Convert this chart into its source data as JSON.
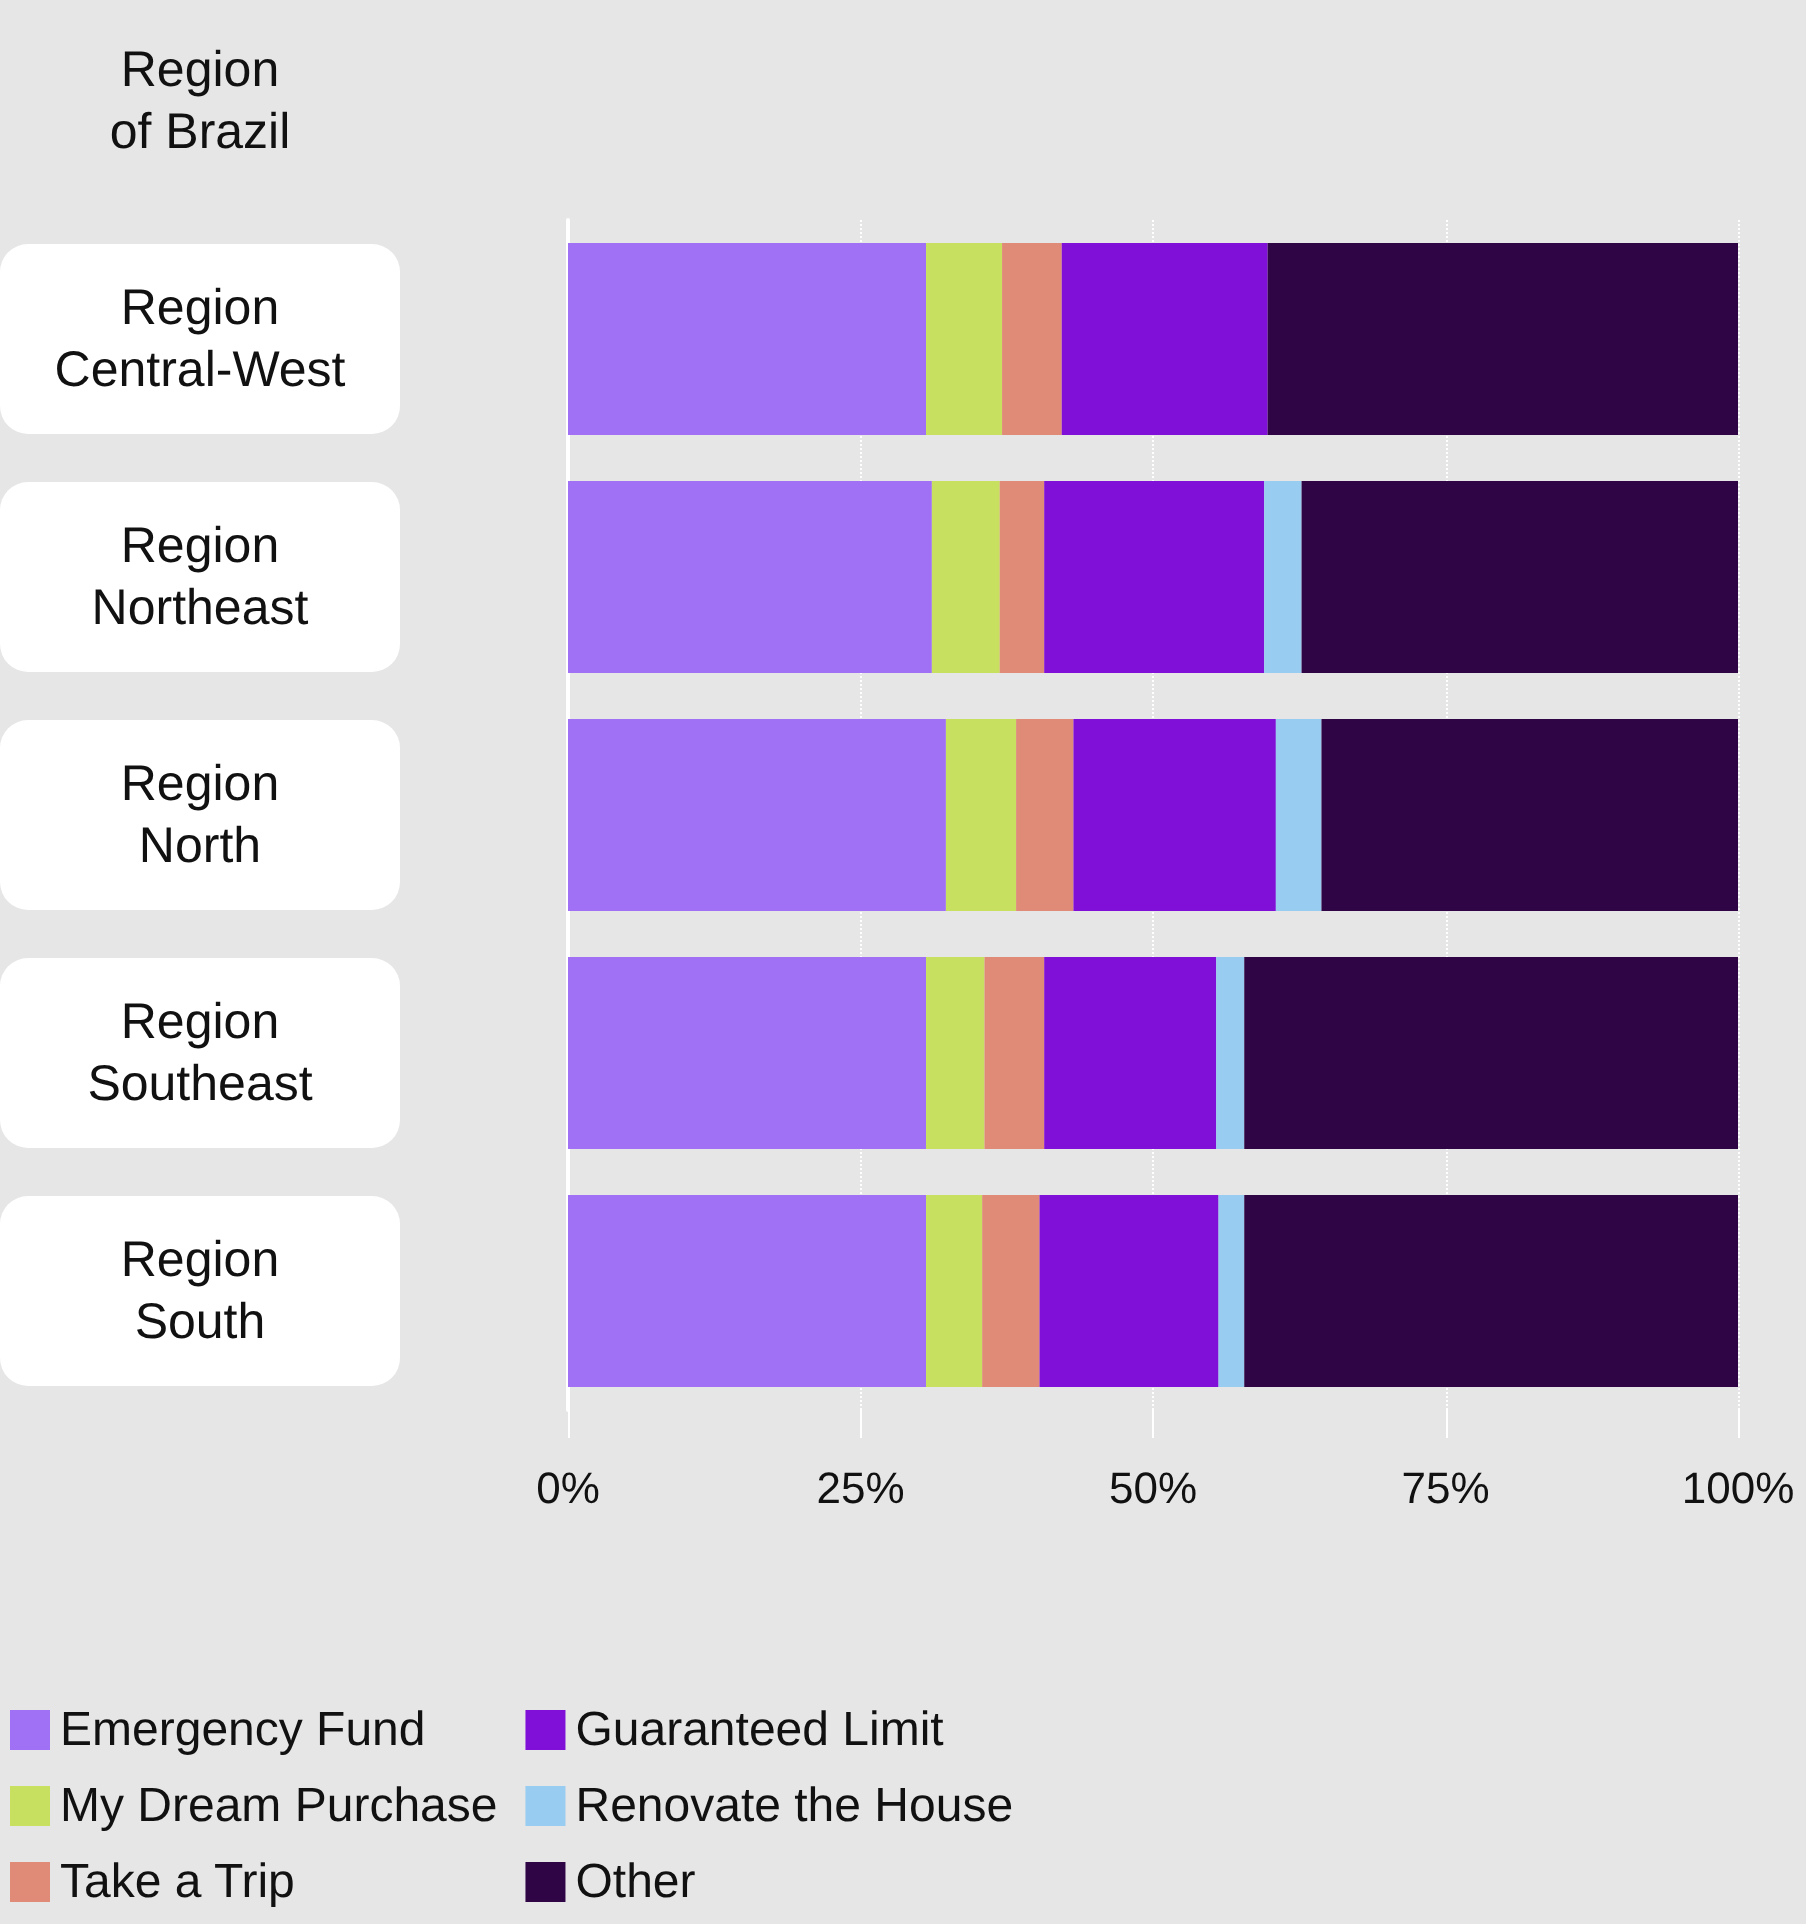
{
  "chart_data": {
    "type": "bar",
    "orientation": "horizontal",
    "stacked": true,
    "ylabel": "Region of Brazil",
    "categories": [
      "Region Central-West",
      "Region Northeast",
      "Region North",
      "Region Southeast",
      "Region South"
    ],
    "series": [
      {
        "name": "Emergency Fund",
        "color": "#a070f5",
        "values": [
          30.6,
          31.1,
          32.3,
          30.6,
          30.6
        ]
      },
      {
        "name": "My Dream Purchase",
        "color": "#c8e060",
        "values": [
          6.5,
          5.8,
          6.0,
          5.0,
          4.8
        ]
      },
      {
        "name": "Take a Trip",
        "color": "#e08a78",
        "values": [
          5.1,
          3.8,
          4.9,
          5.1,
          4.9
        ]
      },
      {
        "name": "Guaranteed Limit",
        "color": "#8010d8",
        "values": [
          17.6,
          18.8,
          17.3,
          14.7,
          15.3
        ]
      },
      {
        "name": "Renovate the House",
        "color": "#98ccf0",
        "values": [
          0,
          3.2,
          3.9,
          2.4,
          2.2
        ]
      },
      {
        "name": "Other",
        "color": "#300545",
        "values": [
          40.2,
          37.3,
          35.6,
          42.2,
          42.2
        ]
      }
    ],
    "xlim": [
      0,
      100
    ],
    "xticks": [
      {
        "value": 0,
        "label": "0%"
      },
      {
        "value": 25,
        "label": "25%"
      },
      {
        "value": 50,
        "label": "50%"
      },
      {
        "value": 75,
        "label": "75%"
      },
      {
        "value": 100,
        "label": "100%"
      }
    ],
    "grid": "x",
    "legend": "bottom left"
  }
}
